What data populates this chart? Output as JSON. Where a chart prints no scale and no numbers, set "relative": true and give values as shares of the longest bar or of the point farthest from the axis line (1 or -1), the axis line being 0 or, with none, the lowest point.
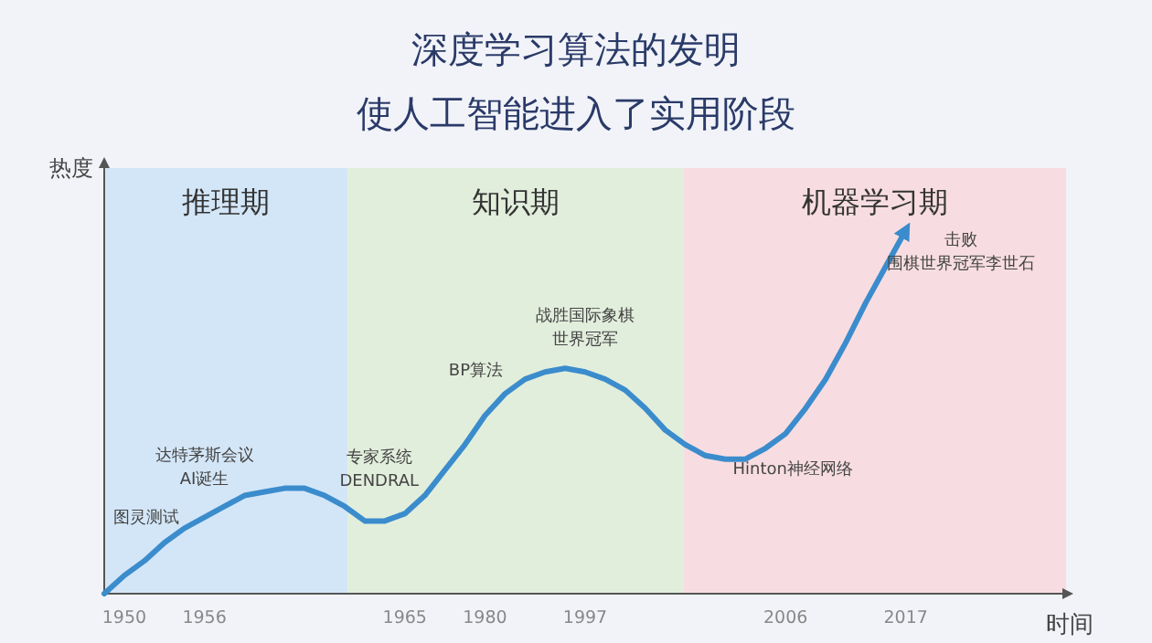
{
  "chart_data": {
    "type": "line",
    "title": "深度学习算法的发明",
    "subtitle": "使人工智能进入了实用阶段",
    "xlabel": "时间",
    "ylabel": "热度",
    "relative": true,
    "color": "#3b8ccc",
    "categories": [
      null,
      "1950",
      null,
      null,
      null,
      "1956",
      null,
      null,
      null,
      null,
      null,
      null,
      null,
      null,
      null,
      "1965",
      null,
      null,
      null,
      "1980",
      null,
      null,
      null,
      null,
      "1997",
      null,
      null,
      null,
      null,
      null,
      null,
      null,
      null,
      null,
      "2006",
      null,
      null,
      null,
      null,
      null,
      "2017",
      null,
      null,
      null,
      null,
      null,
      null,
      null,
      null
    ],
    "values": [
      0,
      0.05,
      0.09,
      0.14,
      0.18,
      0.21,
      0.24,
      0.27,
      0.28,
      0.29,
      0.29,
      0.27,
      0.24,
      0.2,
      0.2,
      0.22,
      0.27,
      0.34,
      0.41,
      0.49,
      0.55,
      0.59,
      0.61,
      0.62,
      0.61,
      0.59,
      0.56,
      0.51,
      0.45,
      0.41,
      0.38,
      0.37,
      0.37,
      0.4,
      0.44,
      0.51,
      0.59,
      0.69,
      0.8,
      0.9,
      1,
      null,
      null,
      null,
      null,
      null,
      null,
      null,
      null
    ],
    "annotations": [
      "推理期",
      "知识期",
      "机器学习期",
      {
        "text": "图灵测试",
        "x": "1950",
        "y": 0.05
      },
      {
        "text": "达特茅斯会议AI诞生",
        "x": "1956",
        "y": 0.21
      },
      {
        "text": "专家系统DENDRAL",
        "x": "1965",
        "y": 0.22
      },
      {
        "text": "BP算法",
        "x": "1980",
        "y": 0.49
      },
      {
        "text": "战胜国际象棋世界冠军",
        "x": "1997",
        "y": 0.61
      },
      {
        "text": "Hinton神经网络",
        "x": "2006",
        "y": 0.44
      },
      {
        "text": "击败围棋世界冠军李世石",
        "x": "2017",
        "y": 1
      }
    ]
  }
}
